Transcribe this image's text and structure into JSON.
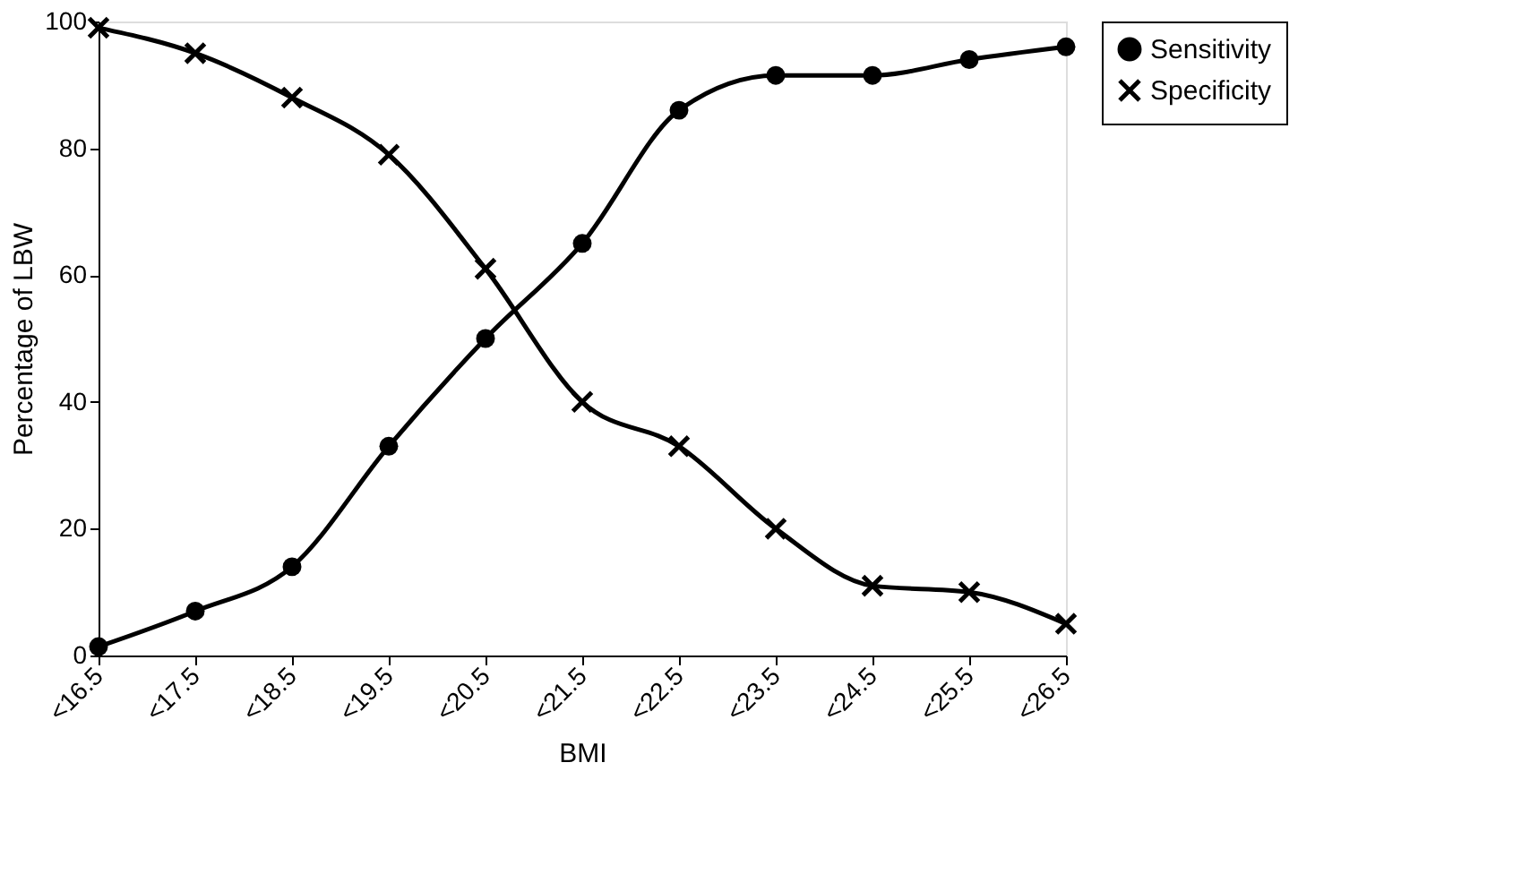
{
  "chart_data": {
    "type": "line",
    "xlabel": "BMI",
    "ylabel": "Percentage of LBW",
    "categories": [
      "<16.5",
      "<17.5",
      "<18.5",
      "<19.5",
      "<20.5",
      "<21.5",
      "<22.5",
      "<23.5",
      "<24.5",
      "<25.5",
      "<26.5"
    ],
    "series": [
      {
        "name": "Sensitivity",
        "color": "#000000",
        "marker": "circle",
        "values": [
          1.4,
          7,
          14,
          33,
          50,
          65,
          86,
          91.5,
          91.5,
          94,
          96
        ]
      },
      {
        "name": "Specificity",
        "color": "#000000",
        "marker": "cross",
        "values": [
          99,
          95,
          88,
          79,
          61,
          40,
          33,
          20,
          11,
          10,
          5
        ]
      }
    ],
    "ylim": [
      0,
      100
    ],
    "yticks": [
      0,
      20,
      40,
      60,
      80,
      100
    ],
    "grid": false,
    "legend": "right",
    "line_style": "solid"
  }
}
